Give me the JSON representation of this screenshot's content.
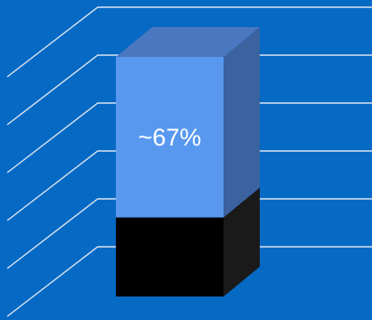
{
  "chart_data": {
    "type": "bar",
    "variant": "3d-stacked-percent",
    "categories": [
      ""
    ],
    "series": [
      {
        "values": [
          33
        ],
        "color": "#000000"
      },
      {
        "values": [
          67
        ],
        "color": "#5898ef"
      }
    ],
    "data_labels": [
      "~67%"
    ],
    "ylim": [
      0,
      100
    ],
    "grid": true,
    "legend": "none",
    "colors": {
      "background": "#0669c4",
      "gridline": "#dce6f2",
      "top_side_color": "#4a78c0",
      "right_side_color": "#3c62a0",
      "bottom_right_side_color": "#1a1a1a",
      "label_color": "#ffffff"
    }
  }
}
